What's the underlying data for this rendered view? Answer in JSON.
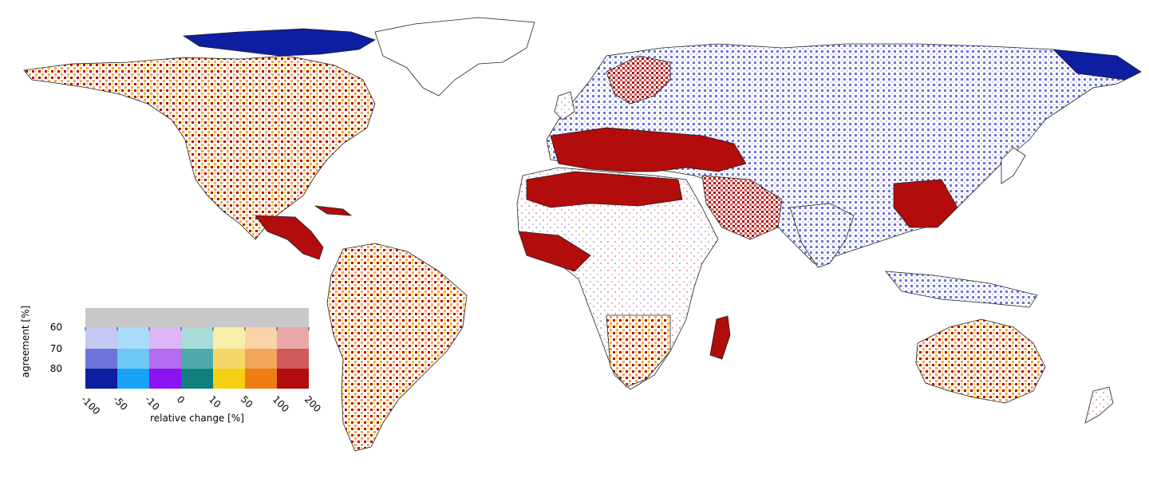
{
  "legend": {
    "x_label": "relative change [%]",
    "y_label": "agreement [%]",
    "x_ticks": [
      "-100",
      "-50",
      "-10",
      "0",
      "10",
      "50",
      "100",
      "200"
    ],
    "y_ticks": [
      "60",
      "70",
      "80"
    ],
    "palette": [
      [
        "#c8c8c8",
        "#c8c8c8",
        "#c8c8c8",
        "#c8c8c8",
        "#c8c8c8",
        "#c8c8c8",
        "#c8c8c8"
      ],
      [
        "#c6c8f4",
        "#a9dcf8",
        "#dcb6f6",
        "#a8dcd8",
        "#f8eeaa",
        "#f8d4a8",
        "#e8a8aa"
      ],
      [
        "#6c74d8",
        "#6cc6f6",
        "#b46cf0",
        "#4eaaaa",
        "#f4d86a",
        "#f2a65c",
        "#d05a5a"
      ],
      [
        "#0d1ea0",
        "#18a2f6",
        "#8a14f4",
        "#10807e",
        "#f6d010",
        "#ee7e12",
        "#b20c0c"
      ]
    ]
  },
  "map_colors": {
    "strong_increase": "#b20c0c",
    "increase": "#d05a5a",
    "weak_increase": "#f2a65c",
    "slight_increase": "#f6d010",
    "strong_decrease": "#0d1ea0",
    "decrease": "#6c74d8",
    "weak_decrease": "#c6c8f4",
    "border": "#222222"
  }
}
